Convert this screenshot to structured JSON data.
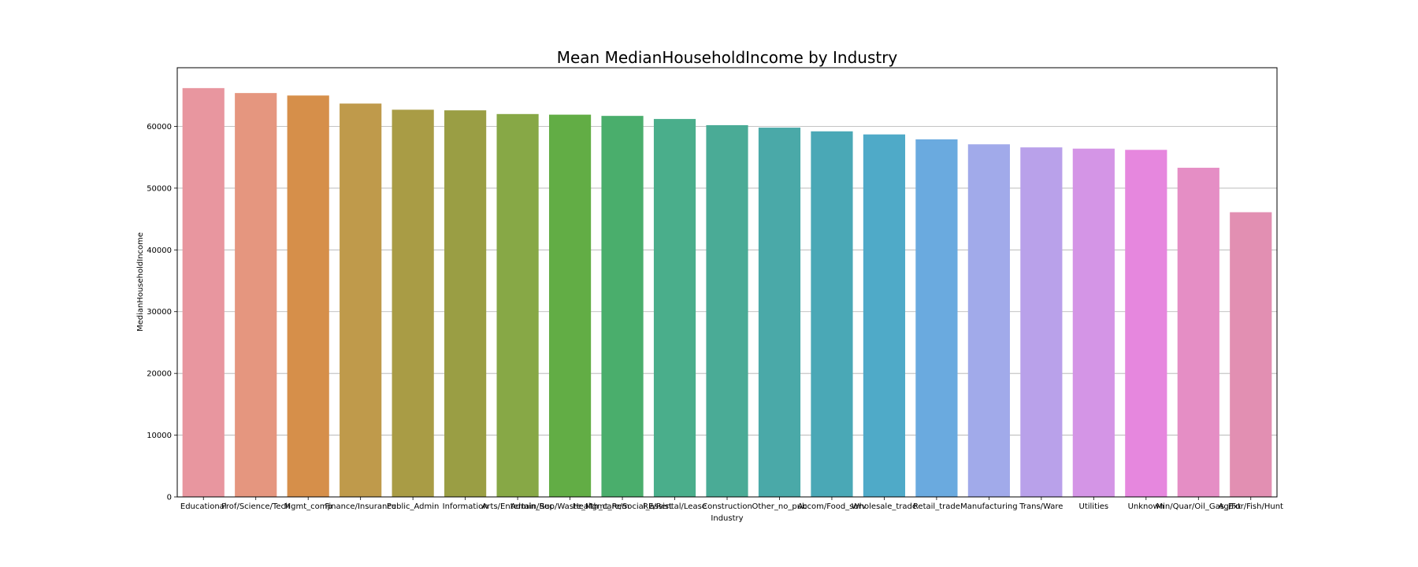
{
  "chart_data": {
    "type": "bar",
    "title": "Mean MedianHouseholdIncome by Industry",
    "xlabel": "Industry",
    "ylabel": "MedianHouseholdIncome",
    "ylim": [
      0,
      69500
    ],
    "yticks": [
      0,
      10000,
      20000,
      30000,
      40000,
      50000,
      60000
    ],
    "grid": "horizontal",
    "categories": [
      "Educational",
      "Prof/Science/Tech",
      "Mgmt_comp",
      "Finance/Insurance",
      "Public_Admin",
      "Information",
      "Arts/Entertain/Rec",
      "Admin_Sup/Waste_Mgmt_Rem",
      "Health_care/Social_assist",
      "RE/Rental/Lease",
      "Construction",
      "Other_no_pub",
      "Accom/Food_serv",
      "Wholesale_trade",
      "Retail_trade",
      "Manufacturing",
      "Trans/Ware",
      "Utilities",
      "Unknown",
      "Min/Quar/Oil_Gas_Ext",
      "Ag/For/Fish/Hunt"
    ],
    "values": [
      66200,
      65400,
      65000,
      63700,
      62700,
      62600,
      62000,
      61900,
      61700,
      61200,
      60200,
      59800,
      59200,
      58700,
      57900,
      57100,
      56600,
      56400,
      56200,
      53300,
      46100
    ],
    "colors": [
      "#e8969f",
      "#e5967f",
      "#d68f4a",
      "#bf9a4b",
      "#a99c45",
      "#9a9e44",
      "#87a846",
      "#62ad45",
      "#4aae6c",
      "#4aae8b",
      "#4aab96",
      "#4aa9a8",
      "#4aa8b6",
      "#4faac8",
      "#6aaadf",
      "#a1aaea",
      "#b9a1ea",
      "#d495e6",
      "#e687de",
      "#e58ec5",
      "#e28fb2"
    ]
  }
}
